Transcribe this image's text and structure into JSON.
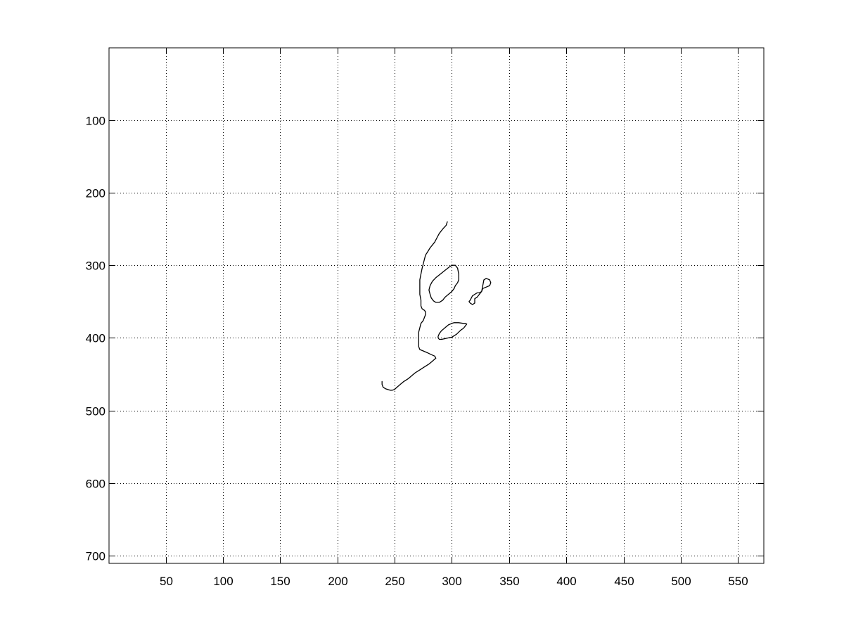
{
  "chart_data": {
    "type": "line",
    "title": "",
    "xlabel": "",
    "ylabel": "",
    "xlim": [
      0.5,
      572.5
    ],
    "ylim": [
      0.5,
      710.5
    ],
    "y_reversed": true,
    "grid": true,
    "xticks": [
      50,
      100,
      150,
      200,
      250,
      300,
      350,
      400,
      450,
      500,
      550
    ],
    "yticks": [
      100,
      200,
      300,
      400,
      500,
      600,
      700
    ],
    "xtick_labels": [
      "50",
      "100",
      "150",
      "200",
      "250",
      "300",
      "350",
      "400",
      "450",
      "500",
      "550"
    ],
    "ytick_labels": [
      "100",
      "200",
      "300",
      "400",
      "500",
      "600",
      "700"
    ],
    "line_color": "#000000",
    "series": [
      {
        "x": [
          296,
          295,
          292,
          289,
          287,
          285,
          283,
          281,
          279,
          277,
          276,
          275,
          274,
          273,
          272,
          272,
          272,
          273,
          273,
          274,
          276,
          277,
          277,
          276,
          275,
          273,
          272,
          271,
          271,
          271,
          271,
          272,
          275,
          278,
          282,
          285,
          286,
          283,
          280,
          276,
          272,
          268,
          265,
          262,
          258,
          255,
          252,
          250,
          248,
          246,
          244,
          242,
          240,
          239,
          239
        ],
        "y": [
          240,
          245,
          250,
          256,
          262,
          268,
          272,
          276,
          281,
          286,
          292,
          298,
          304,
          312,
          320,
          330,
          340,
          348,
          356,
          360,
          362,
          364,
          368,
          372,
          376,
          380,
          386,
          392,
          400,
          406,
          412,
          416,
          418,
          420,
          423,
          425,
          428,
          432,
          436,
          440,
          444,
          448,
          452,
          456,
          460,
          464,
          468,
          471,
          472,
          472,
          471,
          470,
          468,
          464,
          460
        ]
      },
      {
        "x": [
          300,
          298,
          294,
          290,
          286,
          283,
          281,
          280,
          281,
          282,
          284,
          286,
          289,
          292,
          294,
          297,
          300,
          302,
          303,
          305,
          306,
          306,
          305,
          303,
          302,
          300
        ],
        "y": [
          300,
          302,
          307,
          312,
          317,
          322,
          328,
          334,
          340,
          345,
          349,
          351,
          351,
          348,
          344,
          340,
          336,
          332,
          328,
          324,
          320,
          312,
          304,
          300,
          300,
          300
        ]
      },
      {
        "x": [
          330,
          333,
          334,
          333,
          330,
          327,
          326,
          324,
          322,
          320,
          318,
          317,
          316,
          315,
          316,
          318,
          320,
          320,
          320,
          322,
          324,
          326,
          328,
          330
        ],
        "y": [
          318,
          320,
          324,
          328,
          330,
          332,
          336,
          338,
          338,
          340,
          342,
          345,
          348,
          350,
          352,
          354,
          352,
          348,
          346,
          344,
          340,
          336,
          320,
          318
        ]
      },
      {
        "x": [
          300,
          297,
          294,
          291,
          289,
          288,
          288,
          289,
          291,
          294,
          297,
          300,
          302,
          304,
          306,
          308,
          310,
          311,
          312,
          313,
          312,
          310,
          306,
          302,
          300
        ],
        "y": [
          380,
          382,
          386,
          390,
          394,
          398,
          400,
          402,
          402,
          401,
          400,
          399,
          397,
          395,
          392,
          389,
          387,
          385,
          383,
          381,
          380,
          380,
          379,
          379,
          380
        ]
      }
    ]
  }
}
